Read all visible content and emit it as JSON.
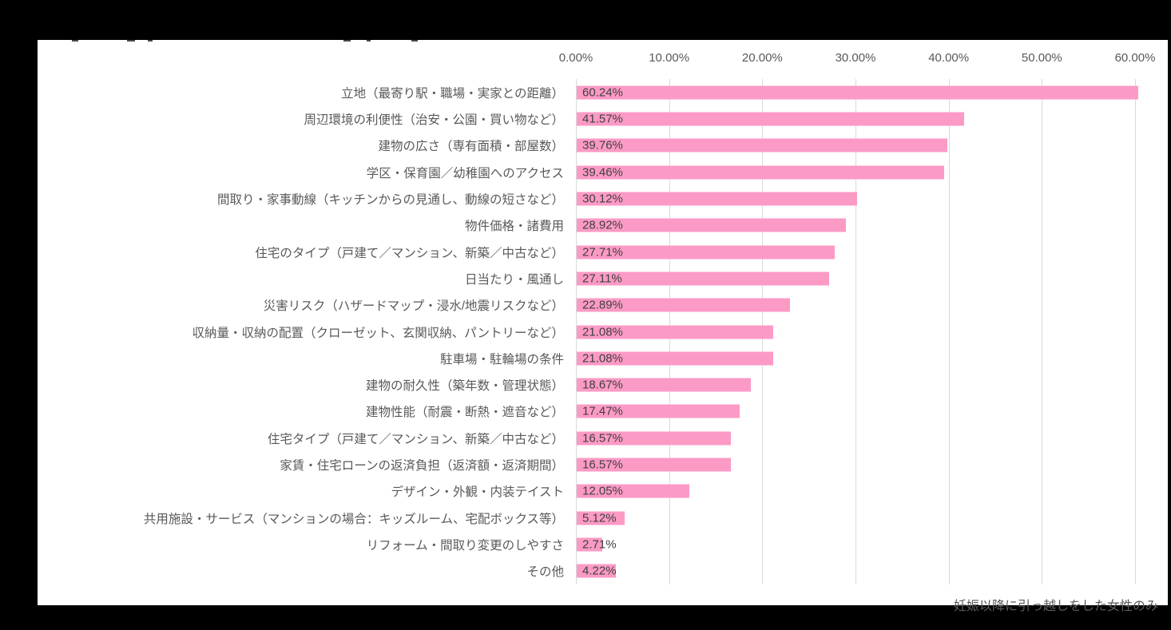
{
  "footnote": "妊娠以降に引っ越しをした女性のみ",
  "colors": {
    "background": "#000000",
    "panel": "#ffffff",
    "bar": "#FC9AC6",
    "gridline": "#d9d9d9",
    "category_text": "#595959",
    "value_text": "#404040",
    "tick_text": "#595959"
  },
  "chart_data": {
    "type": "bar",
    "orientation": "horizontal",
    "title": "",
    "categories": [
      "立地（最寄り駅・職場・実家との距離）",
      "周辺環境の利便性（治安・公園・買い物など）",
      "建物の広さ（専有面積・部屋数）",
      "学区・保育園／幼稚園へのアクセス",
      "間取り・家事動線（キッチンからの見通し、動線の短さなど）",
      "物件価格・諸費用",
      "住宅のタイプ（戸建て／マンション、新築／中古など）",
      "日当たり・風通し",
      "災害リスク（ハザードマップ・浸水/地震リスクなど）",
      "収納量・収納の配置（クローゼット、玄関収納、パントリーなど）",
      "駐車場・駐輪場の条件",
      "建物の耐久性（築年数・管理状態）",
      "建物性能（耐震・断熱・遮音など）",
      "住宅タイプ（戸建て／マンション、新築／中古など）",
      "家賃・住宅ローンの返済負担（返済額・返済期間）",
      "デザイン・外観・内装テイスト",
      "共用施設・サービス（マンションの場合：キッズルーム、宅配ボックス等）",
      "リフォーム・間取り変更のしやすさ",
      "その他"
    ],
    "values": [
      60.24,
      41.57,
      39.76,
      39.46,
      30.12,
      28.92,
      27.71,
      27.11,
      22.89,
      21.08,
      21.08,
      18.67,
      17.47,
      16.57,
      16.57,
      12.05,
      5.12,
      2.71,
      4.22
    ],
    "value_labels": [
      "60.24%",
      "41.57%",
      "39.76%",
      "39.46%",
      "30.12%",
      "28.92%",
      "27.71%",
      "27.11%",
      "22.89%",
      "21.08%",
      "21.08%",
      "18.67%",
      "17.47%",
      "16.57%",
      "16.57%",
      "12.05%",
      "5.12%",
      "2.71%",
      "4.22%"
    ],
    "x_ticks": [
      "0.00%",
      "10.00%",
      "20.00%",
      "30.00%",
      "40.00%",
      "50.00%",
      "60.00%"
    ],
    "xlim": [
      0,
      60
    ],
    "xlabel": "",
    "ylabel": "",
    "grid": true,
    "legend": false,
    "value_labels_position": "inside-left"
  }
}
